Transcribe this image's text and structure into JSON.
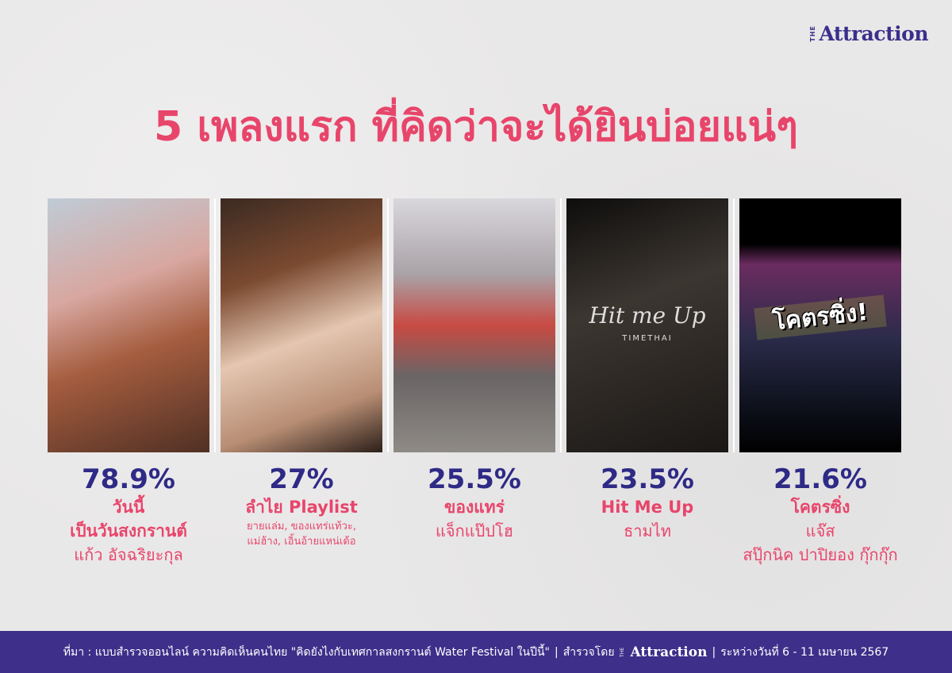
{
  "brand": {
    "the": "THE",
    "name": "Attraction"
  },
  "title": "5 เพลงแรก ที่คิดว่าจะได้ยินบ่อยแน่ๆ",
  "songs": [
    {
      "percent": "78.9%",
      "song": "วันนี้",
      "song2": "เป็นวันสงกรานต์",
      "artist": "แก้ว อัจฉริยะกุล"
    },
    {
      "percent": "27%",
      "song": "ลำไย Playlist",
      "artist": "ยายแล่ม, ของแทร่แท้วะ,",
      "artist2": "แม่ฮ้าง, เอิ้นอ้ายแหน่เด้อ"
    },
    {
      "percent": "25.5%",
      "song": "ของแทร่",
      "artist": "แจ็กแป๊ปโฮ"
    },
    {
      "percent": "23.5%",
      "song": "Hit Me Up",
      "artist": "ธามไท",
      "image_logo": "Hit me Up",
      "image_logo_sub": "TIMETHAI"
    },
    {
      "percent": "21.6%",
      "song": "โคตรซิ่ง",
      "artist": "แจ๊ส",
      "artist2": "สปุ๊กนิค ปาปิยอง กุ๊กกุ๊ก",
      "image_logo": "โคตรซิ่ง!"
    }
  ],
  "footer": {
    "source": "ที่มา : แบบสำรวจออนไลน์ ความคิดเห็นคนไทย \"คิดยังไงกับเทศกาลสงกรานต์ Water Festival ในปีนี้\"",
    "sep": "|",
    "surveyed_by": "สำรวจโดย",
    "brand_the": "THE",
    "brand_name": "Attraction",
    "dates": "ระหว่างวันที่ 6 - 11 เมษายน 2567"
  },
  "colors": {
    "title": "#e8456b",
    "percent": "#2e2a86",
    "footer_bg": "#3d2f8a"
  }
}
